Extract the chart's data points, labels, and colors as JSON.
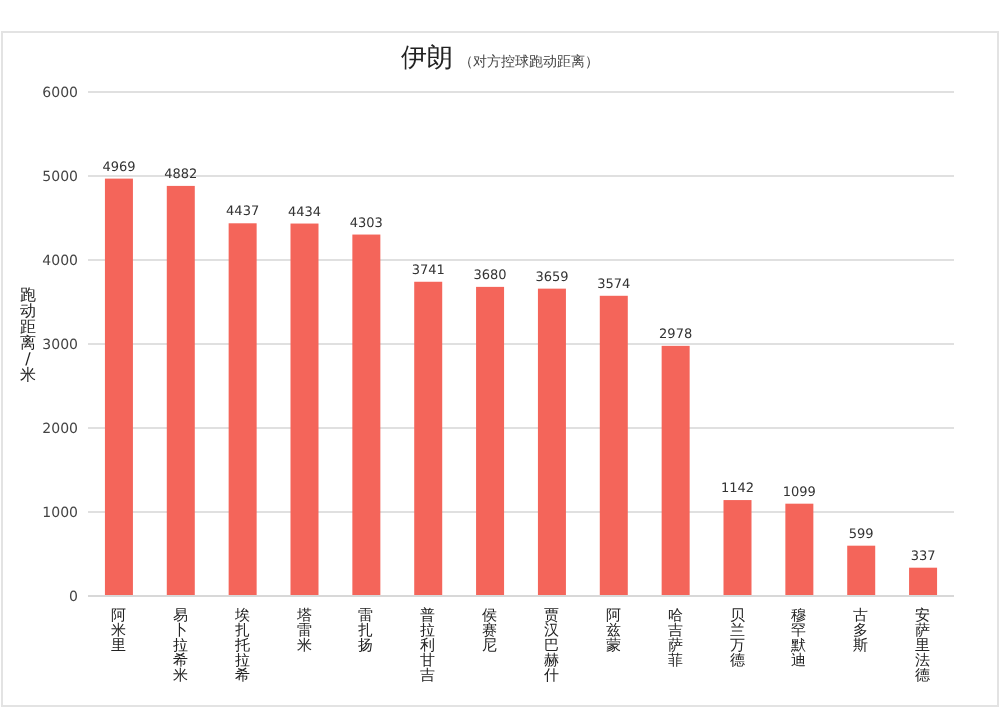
{
  "chart_data": {
    "type": "bar",
    "title": "伊朗",
    "subtitle": "（对方控球跑动距离）",
    "ylabel": "跑动距离/米",
    "categories": [
      "阿米里",
      "易卜拉希米",
      "埃扎托拉希",
      "塔雷米",
      "雷扎扬",
      "普拉利甘吉",
      "侯赛尼",
      "贾汉巴赫什",
      "阿兹蒙",
      "哈吉萨菲",
      "贝兰万德",
      "穆罕默迪",
      "古多斯",
      "安萨里法德"
    ],
    "values": [
      4969,
      4882,
      4437,
      4434,
      4303,
      3741,
      3680,
      3659,
      3574,
      2978,
      1142,
      1099,
      599,
      337
    ],
    "color": "#f4655a",
    "ylim": [
      0,
      6000
    ],
    "yticks": [
      0,
      1000,
      2000,
      3000,
      4000,
      5000,
      6000
    ],
    "grid": "y",
    "data_labels": true
  }
}
